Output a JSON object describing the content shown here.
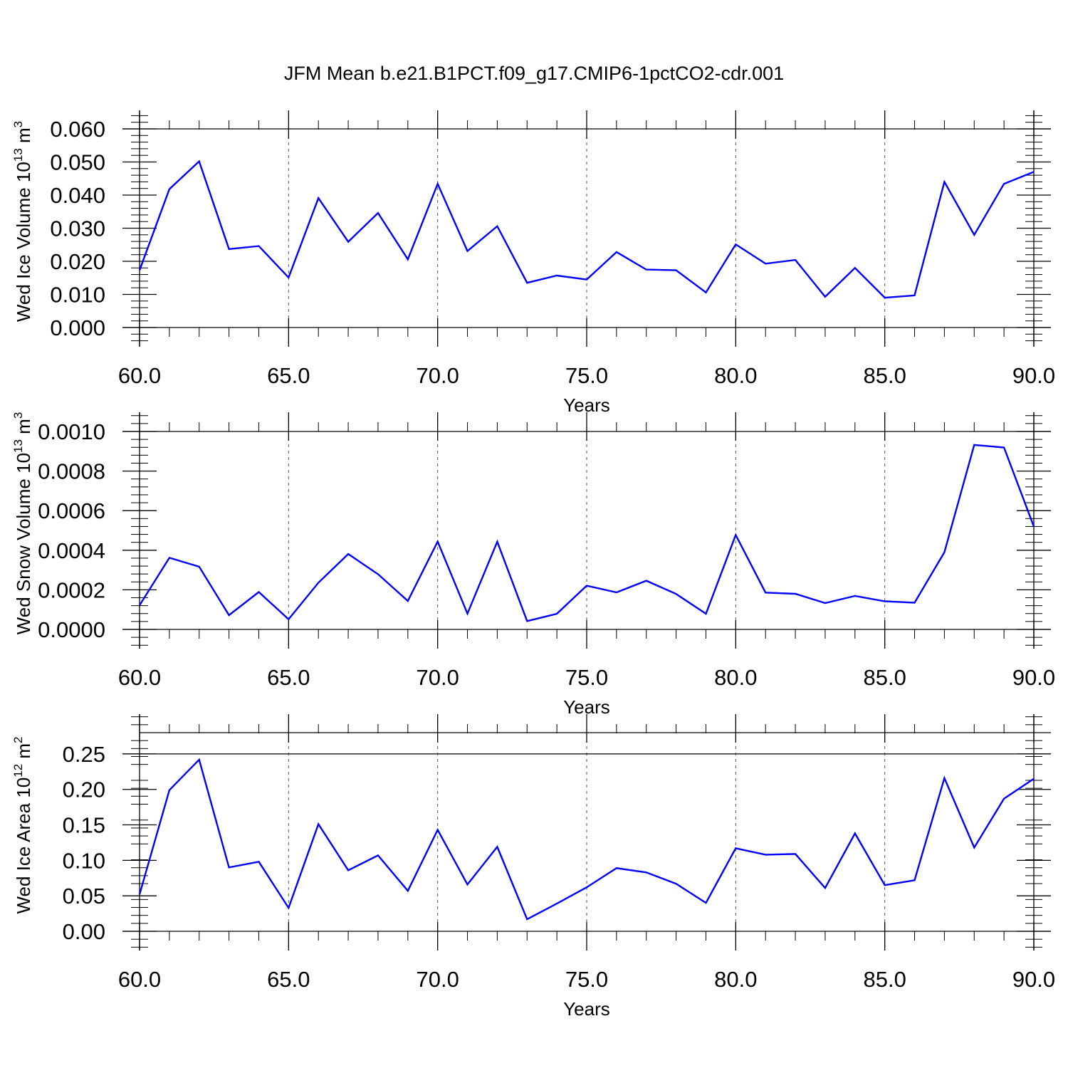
{
  "title": "JFM Mean b.e21.B1PCT.f09_g17.CMIP6-1pctCO2-cdr.001",
  "colors": {
    "series": "#0000ff",
    "axis": "#000000",
    "grid": "#555555"
  },
  "chart_data": [
    {
      "type": "line",
      "ylabel": {
        "text": "Wed Ice Volume 10",
        "sup": "13",
        "unit": " m",
        "unit_sup": "3"
      },
      "xlabel": "Years",
      "xlim": [
        60,
        90
      ],
      "ylim": [
        0.0,
        0.06
      ],
      "x_ticks": [
        "60.0",
        "65.0",
        "70.0",
        "75.0",
        "80.0",
        "85.0",
        "90.0"
      ],
      "y_ticks": [
        "0.000",
        "0.010",
        "0.020",
        "0.030",
        "0.040",
        "0.050",
        "0.060"
      ],
      "grid": "vertical dashed",
      "x": [
        60,
        61,
        62,
        63,
        64,
        65,
        66,
        67,
        68,
        69,
        70,
        71,
        72,
        73,
        74,
        75,
        76,
        77,
        78,
        79,
        80,
        81,
        82,
        83,
        84,
        85,
        86,
        87,
        88,
        89,
        90
      ],
      "values": [
        0.0173,
        0.0418,
        0.0502,
        0.0237,
        0.0246,
        0.0151,
        0.0391,
        0.0259,
        0.0346,
        0.0206,
        0.0434,
        0.0231,
        0.0306,
        0.0135,
        0.0157,
        0.0145,
        0.0228,
        0.0175,
        0.0173,
        0.0106,
        0.0251,
        0.0193,
        0.0204,
        0.0093,
        0.018,
        0.009,
        0.0097,
        0.044,
        0.028,
        0.0434,
        0.047
      ]
    },
    {
      "type": "line",
      "ylabel": {
        "text": "Wed Snow Volume 10",
        "sup": "13",
        "unit": " m",
        "unit_sup": "3"
      },
      "xlabel": "Years",
      "xlim": [
        60,
        90
      ],
      "ylim": [
        0.0,
        0.001
      ],
      "x_ticks": [
        "60.0",
        "65.0",
        "70.0",
        "75.0",
        "80.0",
        "85.0",
        "90.0"
      ],
      "y_ticks": [
        "0.0000",
        "0.0002",
        "0.0004",
        "0.0006",
        "0.0008",
        "0.0010"
      ],
      "grid": "vertical dashed",
      "x": [
        60,
        61,
        62,
        63,
        64,
        65,
        66,
        67,
        68,
        69,
        70,
        71,
        72,
        73,
        74,
        75,
        76,
        77,
        78,
        79,
        80,
        81,
        82,
        83,
        84,
        85,
        86,
        87,
        88,
        89,
        90
      ],
      "values": [
        0.000122,
        0.000362,
        0.000317,
        7.2e-05,
        0.000189,
        5.1e-05,
        0.000236,
        0.000381,
        0.000279,
        0.000144,
        0.000444,
        8e-05,
        0.000443,
        4.2e-05,
        7.9e-05,
        0.000221,
        0.000187,
        0.000246,
        0.000179,
        7.9e-05,
        0.000477,
        0.000186,
        0.00018,
        0.000133,
        0.000169,
        0.000142,
        0.000135,
        0.00039,
        0.000932,
        0.000919,
        0.00052
      ]
    },
    {
      "type": "line",
      "ylabel": {
        "text": "Wed Ice Area 10",
        "sup": "12",
        "unit": " m",
        "unit_sup": "2"
      },
      "xlabel": "Years",
      "xlim": [
        60,
        90
      ],
      "ylim": [
        0.0,
        0.28
      ],
      "x_ticks": [
        "60.0",
        "65.0",
        "70.0",
        "75.0",
        "80.0",
        "85.0",
        "90.0"
      ],
      "y_ticks": [
        "0.00",
        "0.05",
        "0.10",
        "0.15",
        "0.20",
        "0.25"
      ],
      "grid": "vertical dashed",
      "x": [
        60,
        61,
        62,
        63,
        64,
        65,
        66,
        67,
        68,
        69,
        70,
        71,
        72,
        73,
        74,
        75,
        76,
        77,
        78,
        79,
        80,
        81,
        82,
        83,
        84,
        85,
        86,
        87,
        88,
        89,
        90
      ],
      "values": [
        0.052,
        0.199,
        0.242,
        0.09,
        0.098,
        0.033,
        0.151,
        0.086,
        0.107,
        0.057,
        0.143,
        0.066,
        0.119,
        0.017,
        0.039,
        0.062,
        0.089,
        0.083,
        0.067,
        0.04,
        0.117,
        0.108,
        0.109,
        0.061,
        0.138,
        0.065,
        0.072,
        0.216,
        0.118,
        0.187,
        0.215
      ]
    }
  ]
}
